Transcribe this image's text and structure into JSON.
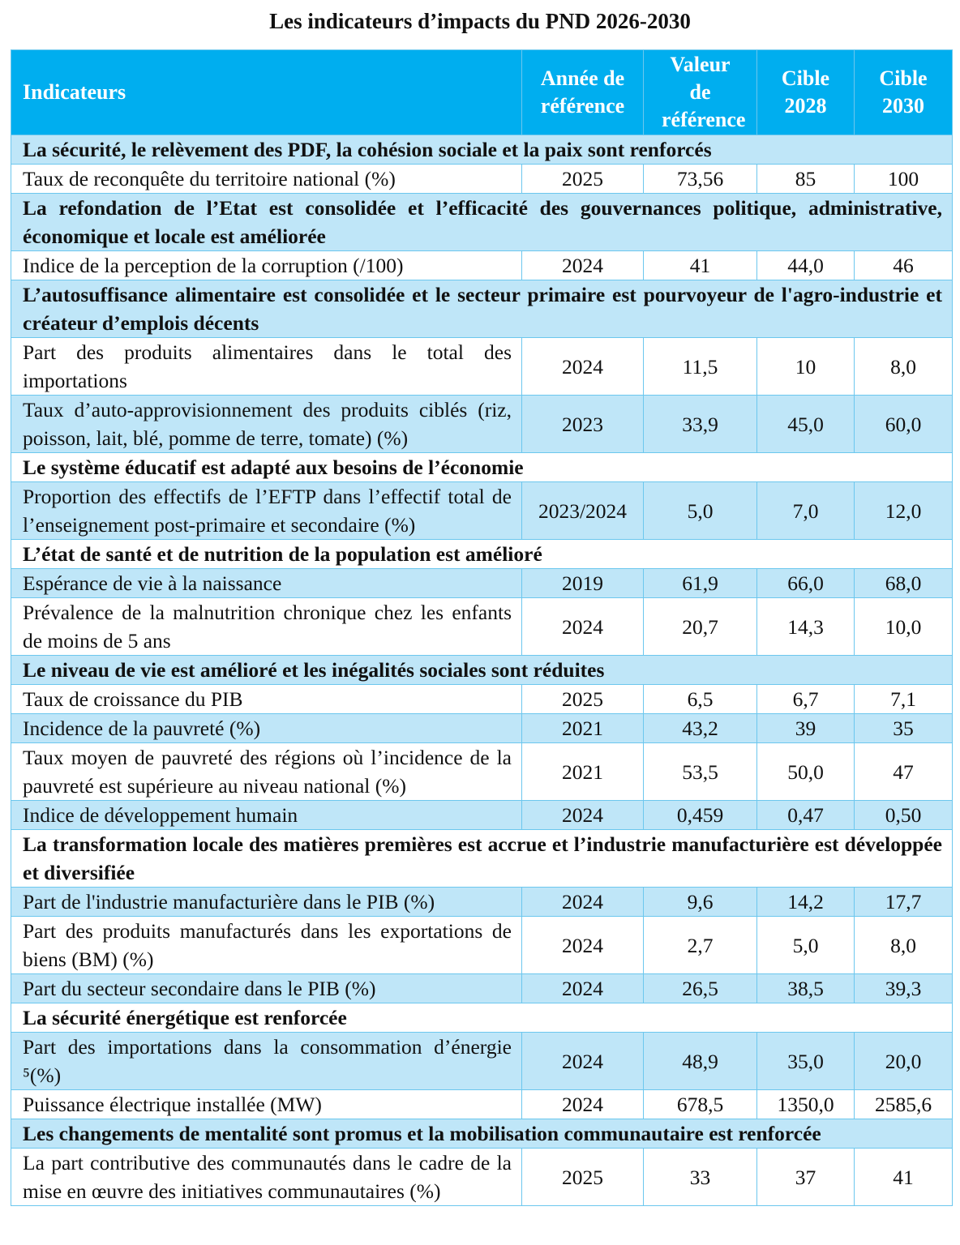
{
  "title": "Les indicateurs d’impacts du PND 2026-2030",
  "colors": {
    "header": "#00aeef",
    "band": "#bfe6f8",
    "border": "#6cc7ee"
  },
  "columns": [
    "Indicateurs",
    "Année de référence",
    "Valeur de référence",
    "Cible 2028",
    "Cible 2030"
  ],
  "rows": [
    {
      "type": "section",
      "text": "La sécurité, le relèvement des PDF, la cohésion sociale et la paix sont renforcés"
    },
    {
      "type": "data",
      "indicator": "Taux de reconquête du territoire national (%)",
      "year": "2025",
      "value": "73,56",
      "t2028": "85",
      "t2030": "100"
    },
    {
      "type": "section",
      "text": "La refondation de l’Etat est consolidée et l’efficacité des gouvernances politique, administrative, économique et locale est améliorée"
    },
    {
      "type": "data",
      "indicator": "Indice de la perception de la corruption (/100)",
      "year": "2024",
      "value": "41",
      "t2028": "44,0",
      "t2030": "46"
    },
    {
      "type": "section",
      "text": "L’autosuffisance alimentaire est consolidée et le secteur primaire est pourvoyeur de l'agro-industrie et créateur d’emplois décents"
    },
    {
      "type": "data",
      "indicator": "Part des produits alimentaires dans le total des importations",
      "year": "2024",
      "value": "11,5",
      "t2028": "10",
      "t2030": "8,0"
    },
    {
      "type": "data",
      "indicator": "Taux d’auto-approvisionnement des produits ciblés (riz, poisson, lait, blé, pomme de terre, tomate) (%)",
      "year": "2023",
      "value": "33,9",
      "t2028": "45,0",
      "t2030": "60,0"
    },
    {
      "type": "section",
      "text": "Le système éducatif est adapté aux besoins de l’économie"
    },
    {
      "type": "data",
      "indicator": "Proportion des effectifs de l’EFTP dans l’effectif total de l’enseignement post-primaire et secondaire (%)",
      "year": "2023/2024",
      "value": "5,0",
      "t2028": "7,0",
      "t2030": "12,0"
    },
    {
      "type": "section",
      "text": "L’état de santé et de nutrition de la population est amélioré"
    },
    {
      "type": "data",
      "indicator": "Espérance de vie à la naissance",
      "year": "2019",
      "value": "61,9",
      "t2028": "66,0",
      "t2030": "68,0"
    },
    {
      "type": "data",
      "indicator": "Prévalence de la malnutrition chronique chez les enfants de moins de 5 ans",
      "year": "2024",
      "value": "20,7",
      "t2028": "14,3",
      "t2030": "10,0"
    },
    {
      "type": "section",
      "text": "Le niveau de vie est amélioré et les inégalités sociales sont réduites"
    },
    {
      "type": "data",
      "indicator": "Taux de croissance du PIB",
      "year": "2025",
      "value": "6,5",
      "t2028": "6,7",
      "t2030": "7,1"
    },
    {
      "type": "data",
      "indicator": "Incidence de la pauvreté (%)",
      "year": "2021",
      "value": "43,2",
      "t2028": "39",
      "t2030": "35"
    },
    {
      "type": "data",
      "indicator": "Taux moyen de pauvreté des régions où l’incidence de la pauvreté est supérieure au niveau national (%)",
      "year": "2021",
      "value": "53,5",
      "t2028": "50,0",
      "t2030": "47"
    },
    {
      "type": "data",
      "indicator": "Indice de développement humain",
      "year": "2024",
      "value": "0,459",
      "t2028": "0,47",
      "t2030": "0,50"
    },
    {
      "type": "section",
      "text": "La transformation locale des matières premières est accrue et l’industrie manufacturière est développée et diversifiée"
    },
    {
      "type": "data",
      "indicator": "Part de l'industrie manufacturière dans le PIB (%)",
      "year": "2024",
      "value": "9,6",
      "t2028": "14,2",
      "t2030": "17,7"
    },
    {
      "type": "data",
      "indicator": "Part des produits manufacturés dans les exportations de biens (BM) (%)",
      "year": "2024",
      "value": "2,7",
      "t2028": "5,0",
      "t2030": "8,0"
    },
    {
      "type": "data",
      "indicator": "Part du secteur secondaire dans le PIB (%)",
      "year": "2024",
      "value": "26,5",
      "t2028": "38,5",
      "t2030": "39,3"
    },
    {
      "type": "section",
      "text": "La sécurité énergétique est renforcée"
    },
    {
      "type": "data",
      "indicator": "Part des importations dans la consommation d’énergie ⁵(%)",
      "year": "2024",
      "value": "48,9",
      "t2028": "35,0",
      "t2030": "20,0"
    },
    {
      "type": "data",
      "indicator": "Puissance électrique installée (MW)",
      "year": "2024",
      "value": "678,5",
      "t2028": "1350,0",
      "t2030": "2585,6"
    },
    {
      "type": "section",
      "text": "Les changements de mentalité sont promus et la mobilisation communautaire est renforcée"
    },
    {
      "type": "data",
      "indicator": "La part contributive des communautés dans le cadre de la mise en œuvre des initiatives communautaires (%)",
      "year": "2025",
      "value": "33",
      "t2028": "37",
      "t2030": "41"
    }
  ]
}
